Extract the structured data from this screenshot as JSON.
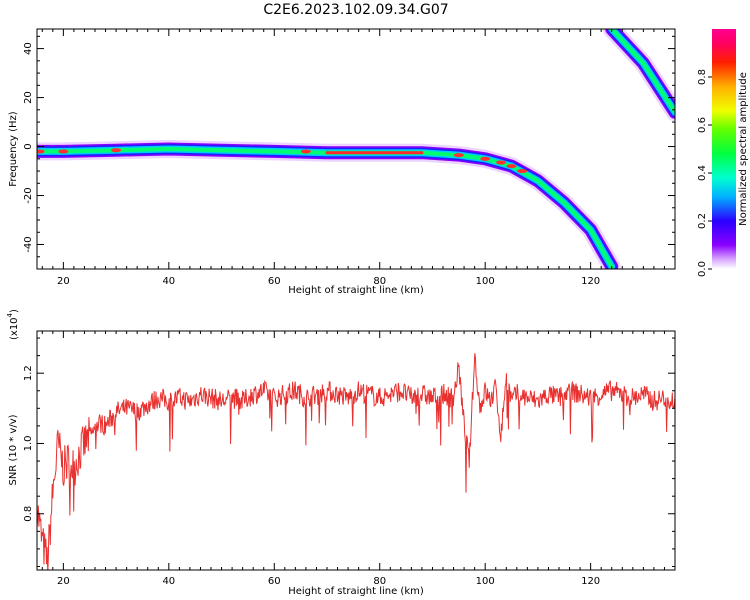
{
  "title": "C2E6.2023.102.09.34.G07",
  "chart_data": [
    {
      "type": "heatmap",
      "xlabel": "Height of straight line (km)",
      "ylabel": "Frequency (Hz)",
      "xlim": [
        15,
        136
      ],
      "ylim": [
        -50,
        48
      ],
      "xticks": [
        20,
        40,
        60,
        80,
        100,
        120
      ],
      "yticks": [
        40,
        20,
        0,
        -20,
        -40
      ],
      "colorbar": {
        "label": "Normalized spectral amplitude",
        "range": [
          0,
          1
        ],
        "ticks": [
          0.0,
          0.2,
          0.4,
          0.6,
          0.8
        ]
      },
      "ridge_main": [
        [
          15,
          -2
        ],
        [
          20,
          -2
        ],
        [
          30,
          -1.5
        ],
        [
          40,
          -1
        ],
        [
          50,
          -1.5
        ],
        [
          60,
          -2
        ],
        [
          70,
          -2.5
        ],
        [
          80,
          -2.5
        ],
        [
          88,
          -2.5
        ],
        [
          95,
          -3.5
        ],
        [
          100,
          -5
        ],
        [
          105,
          -8
        ],
        [
          110,
          -14
        ],
        [
          115,
          -23
        ],
        [
          120,
          -34
        ],
        [
          124,
          -49
        ]
      ],
      "ridge_aliased": [
        [
          124,
          48
        ],
        [
          130,
          34
        ],
        [
          136,
          14
        ]
      ]
    },
    {
      "type": "line",
      "xlabel": "Height of straight line (km)",
      "ylabel": "SNR (10 * v/v)",
      "yscale_label": "(x10",
      "yscale_exponent": "4",
      "xlim": [
        15,
        136
      ],
      "ylim": [
        0.64,
        1.32
      ],
      "xticks": [
        20,
        40,
        60,
        80,
        100,
        120
      ],
      "yticks": [
        0.8,
        1.0,
        1.2
      ],
      "color": "#e8302f",
      "series": [
        {
          "x": [
            15,
            16,
            17,
            18,
            19,
            20,
            21,
            22,
            23,
            24,
            25,
            26,
            27,
            28,
            29,
            30,
            32,
            34,
            36,
            38,
            40,
            42,
            44,
            46,
            48,
            50,
            52,
            54,
            56,
            58,
            60,
            62,
            64,
            66,
            68,
            70,
            72,
            74,
            76,
            78,
            80,
            82,
            84,
            86,
            88,
            90,
            92,
            94,
            95,
            96,
            97,
            98,
            99,
            100,
            101,
            102,
            103,
            104,
            105,
            106,
            108,
            110,
            112,
            114,
            116,
            118,
            120,
            122,
            124,
            126,
            128,
            130,
            132,
            134,
            136
          ],
          "values": [
            0.82,
            0.72,
            0.66,
            0.86,
            1.0,
            0.93,
            0.95,
            0.93,
            0.97,
            1.0,
            1.02,
            1.04,
            1.06,
            1.05,
            1.07,
            1.09,
            1.1,
            1.09,
            1.11,
            1.13,
            1.12,
            1.13,
            1.12,
            1.14,
            1.13,
            1.12,
            1.13,
            1.12,
            1.14,
            1.15,
            1.13,
            1.14,
            1.15,
            1.13,
            1.14,
            1.15,
            1.14,
            1.13,
            1.15,
            1.14,
            1.13,
            1.14,
            1.15,
            1.13,
            1.14,
            1.13,
            1.14,
            1.13,
            1.22,
            1.05,
            0.95,
            1.25,
            1.1,
            1.15,
            1.12,
            1.16,
            1.02,
            1.2,
            1.12,
            1.14,
            1.13,
            1.12,
            1.14,
            1.13,
            1.15,
            1.14,
            1.13,
            1.14,
            1.15,
            1.14,
            1.13,
            1.14,
            1.12,
            1.13,
            1.12
          ]
        }
      ]
    }
  ]
}
